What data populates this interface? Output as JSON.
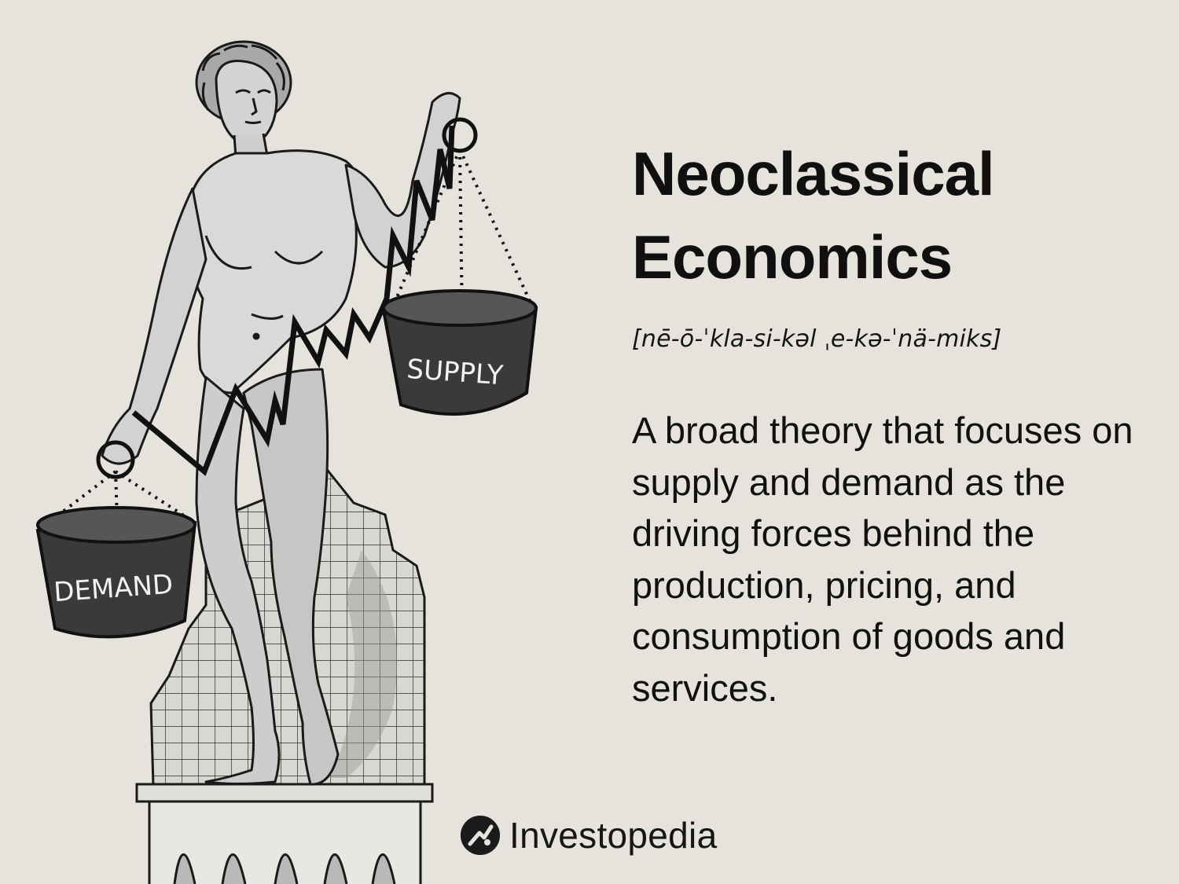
{
  "headline": {
    "line1": "Neoclassical",
    "line2": "Economics"
  },
  "pronunciation": "[nē-ō-ˈkla-si-kəl ˌe-kə-ˈnä-miks]",
  "definition": "A broad theory that focuses on supply and demand as the driving forces behind the production, pricing, and consumption of goods and services.",
  "illustration": {
    "left_basket_label": "DEMAND",
    "right_basket_label": "SUPPLY"
  },
  "brand": {
    "name": "Investopedia",
    "logo_icon": "investopedia-logo-icon"
  },
  "colors": {
    "background": "#e6e3dd",
    "ink": "#111111",
    "basket": "#3a3a3a",
    "statue": "#c9c9c9"
  }
}
